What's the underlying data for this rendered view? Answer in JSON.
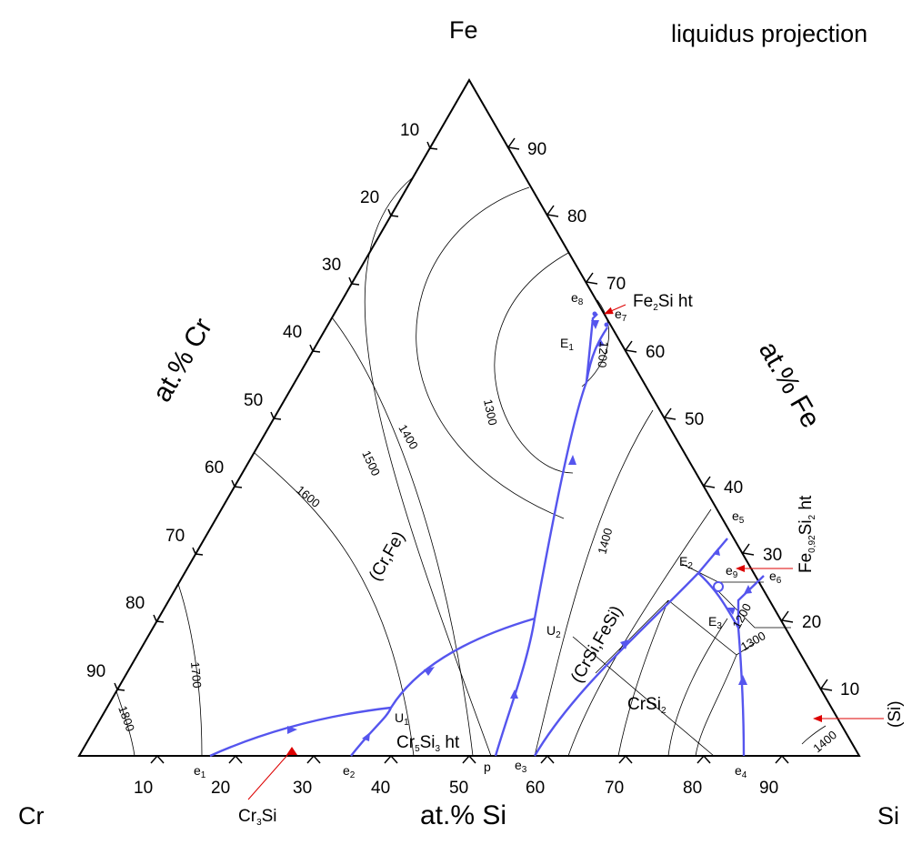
{
  "header": {
    "apex_top": "Fe",
    "corner_left": "Cr",
    "corner_right": "Si",
    "title": "liquidus projection"
  },
  "axes": {
    "left_label": "at.% Cr",
    "right_label": "at.% Fe",
    "bottom_label": "at.% Si",
    "left_ticks": [
      "10",
      "20",
      "30",
      "40",
      "50",
      "60",
      "70",
      "80",
      "90"
    ],
    "right_ticks": [
      "90",
      "80",
      "70",
      "60",
      "50",
      "40",
      "30",
      "20",
      "10"
    ],
    "bottom_ticks": [
      "10",
      "20",
      "30",
      "40",
      "50",
      "60",
      "70",
      "80",
      "90"
    ]
  },
  "phase_fields": {
    "cr_fe": "(Cr,Fe)",
    "crsi_fesi": "(CrSi,FeSi)",
    "crsi2_base": "CrSi",
    "crsi2_sub": "2",
    "cr5si3_base": "Cr",
    "cr5si3_sub1": "5",
    "cr5si3_mid": "Si",
    "cr5si3_sub2": "3",
    "cr5si3_tail": " ht"
  },
  "isotherms": {
    "t1800": "1800",
    "t1700": "1700",
    "t1600": "1600",
    "t1500": "1500",
    "t1400a": "1400",
    "t1300a": "1300",
    "t1200a": "1200",
    "t1400b": "1400",
    "t1200b": "1200",
    "t1300b": "1300",
    "t1400c": "1400"
  },
  "points": {
    "e": "e",
    "E": "E",
    "U": "U",
    "p": "p",
    "s1": "1",
    "s2": "2",
    "s3": "3",
    "s4": "4",
    "s5": "5",
    "s6": "6",
    "s7": "7",
    "s8": "8",
    "s9": "9"
  },
  "compounds": {
    "fe2si_a": "Fe",
    "fe2si_sub": "2",
    "fe2si_b": "Si ht",
    "fe092si2_a": "Fe",
    "fe092si2_sub1": "0,92",
    "fe092si2_b": "Si",
    "fe092si2_sub2": "2",
    "fe092si2_c": " ht",
    "cr3si_a": "Cr",
    "cr3si_sub": "3",
    "cr3si_b": "Si",
    "si": "(Si)"
  },
  "colors": {
    "monovariant": "#5555ee",
    "arrow_marker": "#dd0000",
    "isotherm": "#000000"
  }
}
